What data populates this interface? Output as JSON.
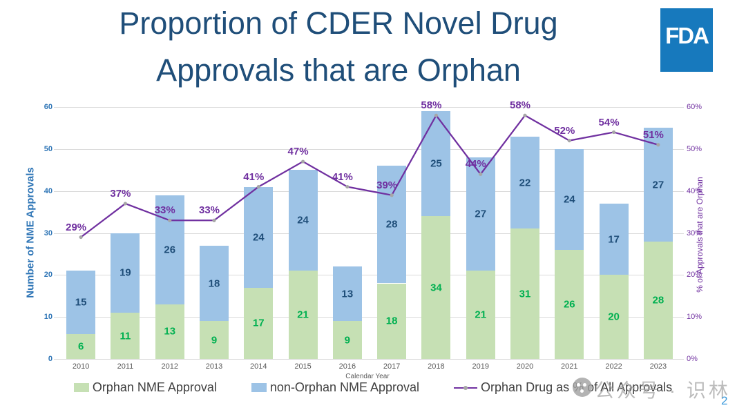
{
  "header": {
    "title_line1": "Proportion of CDER Novel Drug",
    "title_line2": "Approvals that are Orphan",
    "logo_text": "FDA"
  },
  "footer": {
    "watermark": "公众号 · 识林",
    "page_number": "2"
  },
  "colors": {
    "title_blue": "#1F4E79",
    "fda_logo_bg": "#1779BD",
    "orphan_bar_fill": "#C6E0B4",
    "non_orphan_bar_fill": "#9DC3E6",
    "orphan_value_label": "#00B050",
    "non_orphan_value_label": "#1F4E79",
    "percent_line": "#7030A0",
    "line_marker_gray": "#A6A6A6",
    "left_axis_blue": "#2E75B6",
    "right_axis_purple": "#7030A0",
    "axis_gray_text": "#595959",
    "legend_text": "#404040",
    "gridline_gray": "#D9D9D9",
    "page_number_blue": "#3D9BDC"
  },
  "chart_data": {
    "type": "bar",
    "subtype": "stacked-bars-with-percent-line",
    "categories": [
      "2010",
      "2011",
      "2012",
      "2013",
      "2014",
      "2015",
      "2016",
      "2017",
      "2018",
      "2019",
      "2020",
      "2021",
      "2022",
      "2023"
    ],
    "series": [
      {
        "name": "Orphan NME Approval",
        "type": "bar",
        "color": "#C6E0B4",
        "label_color": "#00B050",
        "values": [
          6,
          11,
          13,
          9,
          17,
          21,
          9,
          18,
          34,
          21,
          31,
          26,
          20,
          28
        ]
      },
      {
        "name": "non-Orphan NME Approval",
        "type": "bar",
        "color": "#9DC3E6",
        "label_color": "#1F4E79",
        "values": [
          15,
          19,
          26,
          18,
          24,
          24,
          13,
          28,
          25,
          27,
          22,
          24,
          17,
          27
        ]
      },
      {
        "name": "Orphan Drug as % of All Approvals",
        "type": "line",
        "color": "#7030A0",
        "marker_color": "#A6A6A6",
        "values": [
          29,
          37,
          33,
          33,
          41,
          47,
          41,
          39,
          58,
          44,
          58,
          52,
          54,
          51
        ],
        "point_labels": [
          "29%",
          "37%",
          "33%",
          "33%",
          "41%",
          "47%",
          "41%",
          "39%",
          "58%",
          "44%",
          "58%",
          "52%",
          "54%",
          "51%"
        ]
      }
    ],
    "xlabel": "Calendar Year",
    "ylabel_left": "Number of NME Approvals",
    "ylabel_right": "% of Approvals that are Orphan",
    "y_left": {
      "min": 0,
      "max": 60,
      "ticks": [
        "0",
        "10",
        "20",
        "30",
        "40",
        "50",
        "60"
      ]
    },
    "y_right": {
      "min": 0,
      "max": 60,
      "ticks": [
        "0%",
        "10%",
        "20%",
        "30%",
        "40%",
        "50%",
        "60%"
      ]
    },
    "grid": true,
    "legend_position": "bottom"
  }
}
